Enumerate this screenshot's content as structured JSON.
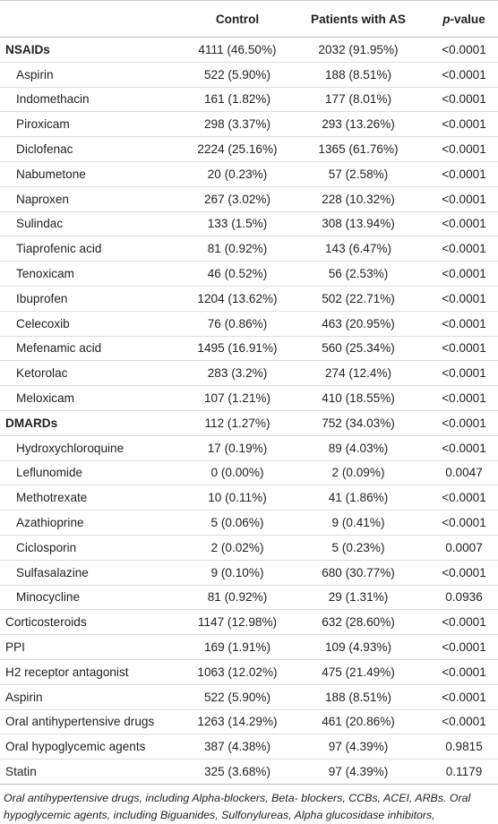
{
  "table": {
    "header": {
      "label": "",
      "control": "Control",
      "patients": "Patients with AS",
      "p_symbol": "p",
      "p_rest": "-value"
    },
    "groups": [
      {
        "label": "NSAIDs",
        "control": "4111 (46.50%)",
        "patients": "2032 (91.95%)",
        "p": "<0.0001",
        "items": [
          {
            "label": "Aspirin",
            "control": "522 (5.90%)",
            "patients": "188 (8.51%)",
            "p": "<0.0001"
          },
          {
            "label": "Indomethacin",
            "control": "161 (1.82%)",
            "patients": "177 (8.01%)",
            "p": "<0.0001"
          },
          {
            "label": "Piroxicam",
            "control": "298 (3.37%)",
            "patients": "293 (13.26%)",
            "p": "<0.0001"
          },
          {
            "label": "Diclofenac",
            "control": "2224 (25.16%)",
            "patients": "1365 (61.76%)",
            "p": "<0.0001"
          },
          {
            "label": "Nabumetone",
            "control": "20 (0.23%)",
            "patients": "57 (2.58%)",
            "p": "<0.0001"
          },
          {
            "label": "Naproxen",
            "control": "267 (3.02%)",
            "patients": "228 (10.32%)",
            "p": "<0.0001"
          },
          {
            "label": "Sulindac",
            "control": "133 (1.5%)",
            "patients": "308 (13.94%)",
            "p": "<0.0001"
          },
          {
            "label": "Tiaprofenic acid",
            "control": "81 (0.92%)",
            "patients": "143 (6.47%)",
            "p": "<0.0001"
          },
          {
            "label": "Tenoxicam",
            "control": "46 (0.52%)",
            "patients": "56 (2.53%)",
            "p": "<0.0001"
          },
          {
            "label": "Ibuprofen",
            "control": "1204 (13.62%)",
            "patients": "502 (22.71%)",
            "p": "<0.0001"
          },
          {
            "label": "Celecoxib",
            "control": "76 (0.86%)",
            "patients": "463 (20.95%)",
            "p": "<0.0001"
          },
          {
            "label": "Mefenamic acid",
            "control": "1495 (16.91%)",
            "patients": "560 (25.34%)",
            "p": "<0.0001"
          },
          {
            "label": "Ketorolac",
            "control": "283 (3.2%)",
            "patients": "274 (12.4%)",
            "p": "<0.0001"
          },
          {
            "label": "Meloxicam",
            "control": "107 (1.21%)",
            "patients": "410 (18.55%)",
            "p": "<0.0001"
          }
        ]
      },
      {
        "label": "DMARDs",
        "control": "112 (1.27%)",
        "patients": "752 (34.03%)",
        "p": "<0.0001",
        "items": [
          {
            "label": "Hydroxychloroquine",
            "control": "17 (0.19%)",
            "patients": "89 (4.03%)",
            "p": "<0.0001"
          },
          {
            "label": "Leflunomide",
            "control": "0 (0.00%)",
            "patients": "2 (0.09%)",
            "p": "0.0047"
          },
          {
            "label": "Methotrexate",
            "control": "10 (0.11%)",
            "patients": "41 (1.86%)",
            "p": "<0.0001"
          },
          {
            "label": "Azathioprine",
            "control": "5 (0.06%)",
            "patients": "9 (0.41%)",
            "p": "<0.0001"
          },
          {
            "label": "Ciclosporin",
            "control": "2 (0.02%)",
            "patients": "5 (0.23%)",
            "p": "0.0007"
          },
          {
            "label": "Sulfasalazine",
            "control": "9 (0.10%)",
            "patients": "680 (30.77%)",
            "p": "<0.0001"
          },
          {
            "label": "Minocycline",
            "control": "81 (0.92%)",
            "patients": "29 (1.31%)",
            "p": "0.0936"
          }
        ]
      }
    ],
    "rows": [
      {
        "label": "Corticosteroids",
        "control": "1147 (12.98%)",
        "patients": "632 (28.60%)",
        "p": "<0.0001"
      },
      {
        "label": "PPI",
        "control": "169 (1.91%)",
        "patients": "109 (4.93%)",
        "p": "<0.0001"
      },
      {
        "label": "H2 receptor antagonist",
        "control": "1063 (12.02%)",
        "patients": "475 (21.49%)",
        "p": "<0.0001"
      },
      {
        "label": "Aspirin",
        "control": "522 (5.90%)",
        "patients": "188 (8.51%)",
        "p": "<0.0001"
      },
      {
        "label": "Oral antihypertensive drugs",
        "control": "1263 (14.29%)",
        "patients": "461 (20.86%)",
        "p": "<0.0001"
      },
      {
        "label": "Oral hypoglycemic agents",
        "control": "387 (4.38%)",
        "patients": "97 (4.39%)",
        "p": "0.9815"
      },
      {
        "label": "Statin",
        "control": "325 (3.68%)",
        "patients": "97 (4.39%)",
        "p": "0.1179"
      }
    ]
  },
  "footnote": "Oral antihypertensive drugs, including Alpha-blockers, Beta- blockers, CCBs, ACEI, ARBs. Oral hypoglycemic agents, including Biguanides, Sulfonylureas, Alpha glucosidase inhibitors, Thiazolidinediones."
}
